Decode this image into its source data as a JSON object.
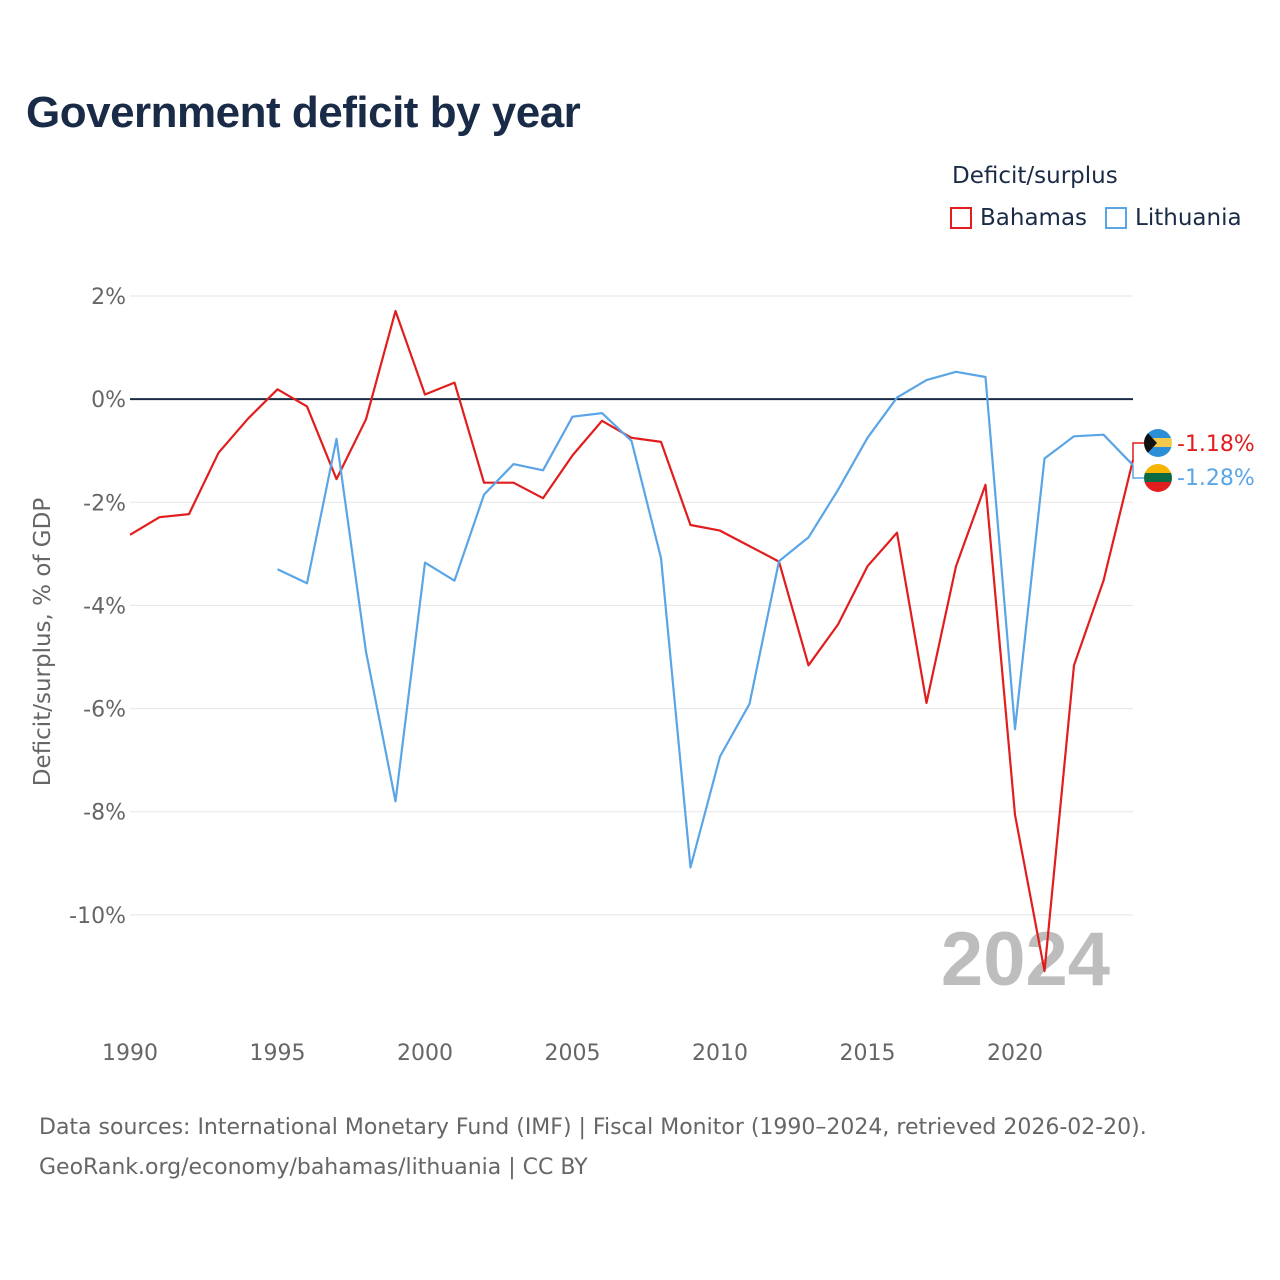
{
  "title": "Government deficit by year",
  "legend": {
    "title": "Deficit/surplus",
    "items": [
      {
        "label": "Bahamas",
        "color": "#e11d1d"
      },
      {
        "label": "Lithuania",
        "color": "#5aa5e6"
      }
    ]
  },
  "footer": {
    "line1": "Data sources: International Monetary Fund (IMF) | Fiscal Monitor (1990–2024, retrieved 2026-02-20).",
    "line2": "GeoRank.org/economy/bahamas/lithuania | CC BY"
  },
  "chart_data": {
    "type": "line",
    "title": "Government deficit by year",
    "xlabel": "",
    "ylabel": "Deficit/surplus, % of GDP",
    "xlim": [
      1990,
      2024
    ],
    "ylim": [
      -12,
      2
    ],
    "x_ticks": [
      "1990",
      "1995",
      "2000",
      "2005",
      "2010",
      "2015",
      "2020"
    ],
    "y_ticks": [
      {
        "value": 2,
        "label": "2%"
      },
      {
        "value": 0,
        "label": "0%"
      },
      {
        "value": -2,
        "label": "-2%"
      },
      {
        "value": -4,
        "label": "-4%"
      },
      {
        "value": -6,
        "label": "-6%"
      },
      {
        "value": -8,
        "label": "-8%"
      },
      {
        "value": -10,
        "label": "-10%"
      }
    ],
    "watermark_year": "2024",
    "grid": true,
    "series": [
      {
        "name": "Bahamas",
        "color": "#e11d1d",
        "end_label": "-1.18%",
        "points": [
          [
            1990,
            -2.63
          ],
          [
            1991,
            -2.29
          ],
          [
            1992,
            -2.23
          ],
          [
            1993,
            -1.04
          ],
          [
            1994,
            -0.38
          ],
          [
            1995,
            0.19
          ],
          [
            1996,
            -0.14
          ],
          [
            1997,
            -1.55
          ],
          [
            1998,
            -0.39
          ],
          [
            1999,
            1.71
          ],
          [
            2000,
            0.09
          ],
          [
            2001,
            0.32
          ],
          [
            2002,
            -1.62
          ],
          [
            2003,
            -1.62
          ],
          [
            2004,
            -1.92
          ],
          [
            2005,
            -1.09
          ],
          [
            2006,
            -0.42
          ],
          [
            2007,
            -0.75
          ],
          [
            2008,
            -0.83
          ],
          [
            2009,
            -2.44
          ],
          [
            2010,
            -2.55
          ],
          [
            2011,
            -2.85
          ],
          [
            2012,
            -3.15
          ],
          [
            2013,
            -5.16
          ],
          [
            2014,
            -4.37
          ],
          [
            2015,
            -3.24
          ],
          [
            2016,
            -2.59
          ],
          [
            2017,
            -5.89
          ],
          [
            2018,
            -3.24
          ],
          [
            2019,
            -1.66
          ],
          [
            2020,
            -8.06
          ],
          [
            2021,
            -11.09
          ],
          [
            2022,
            -5.16
          ],
          [
            2023,
            -3.52
          ],
          [
            2024,
            -1.18
          ]
        ]
      },
      {
        "name": "Lithuania",
        "color": "#5aa5e6",
        "end_label": "-1.28%",
        "points": [
          [
            1995,
            -3.3
          ],
          [
            1996,
            -3.57
          ],
          [
            1997,
            -0.77
          ],
          [
            1998,
            -4.9
          ],
          [
            1999,
            -7.8
          ],
          [
            2000,
            -3.17
          ],
          [
            2001,
            -3.52
          ],
          [
            2002,
            -1.85
          ],
          [
            2003,
            -1.26
          ],
          [
            2004,
            -1.38
          ],
          [
            2005,
            -0.34
          ],
          [
            2006,
            -0.27
          ],
          [
            2007,
            -0.81
          ],
          [
            2008,
            -3.08
          ],
          [
            2009,
            -9.08
          ],
          [
            2010,
            -6.93
          ],
          [
            2011,
            -5.91
          ],
          [
            2012,
            -3.14
          ],
          [
            2013,
            -2.68
          ],
          [
            2014,
            -1.76
          ],
          [
            2015,
            -0.75
          ],
          [
            2016,
            0.03
          ],
          [
            2017,
            0.37
          ],
          [
            2018,
            0.53
          ],
          [
            2019,
            0.43
          ],
          [
            2020,
            -6.4
          ],
          [
            2021,
            -1.15
          ],
          [
            2022,
            -0.72
          ],
          [
            2023,
            -0.69
          ],
          [
            2024,
            -1.28
          ]
        ]
      }
    ]
  }
}
